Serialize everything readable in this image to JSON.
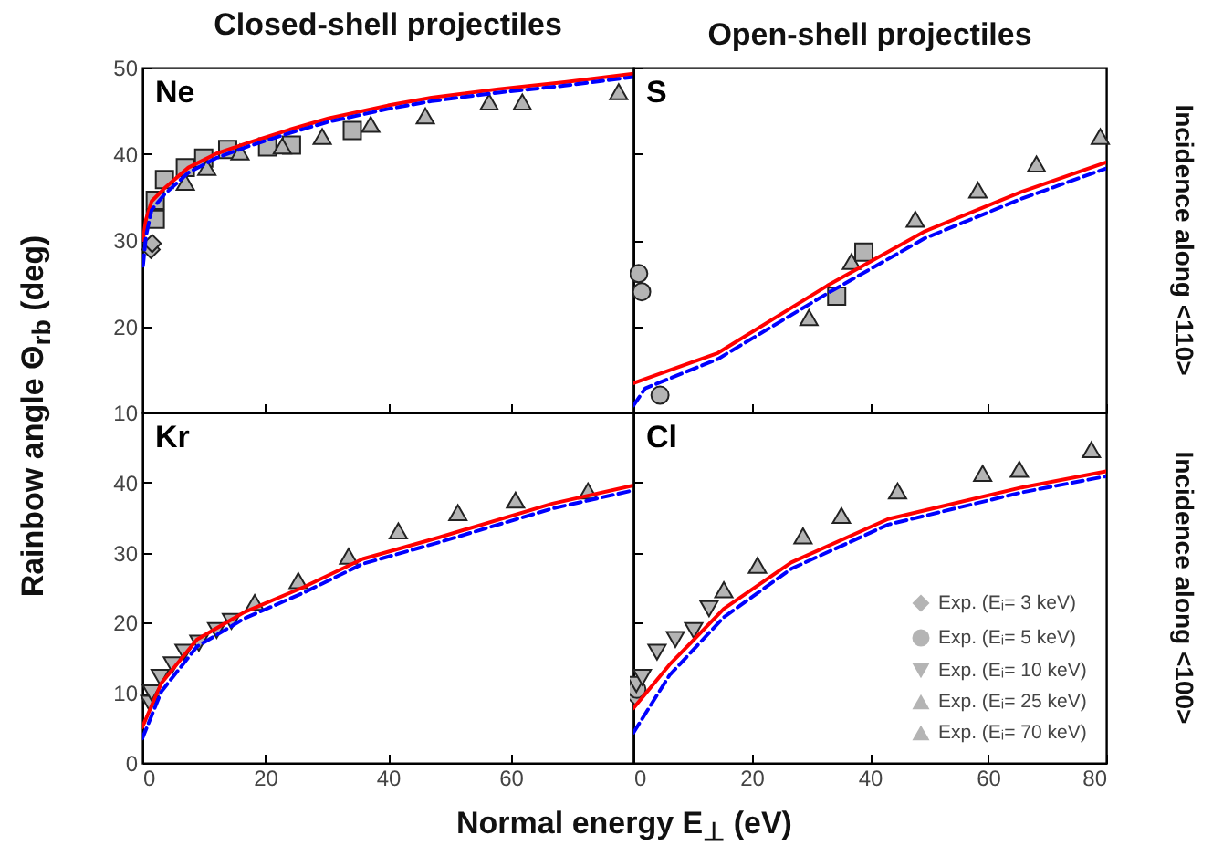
{
  "chart_data": [
    {
      "type": "scatter",
      "title": "Closed-shell projectiles",
      "ylabel": "Rainbow angle Θ$_{rb}$ (deg)",
      "annotations": [
        "Ne"
      ],
      "xlim": [
        0,
        80
      ],
      "xticks": [
        0,
        20,
        40,
        60,
        80
      ],
      "ylim": [
        10,
        50
      ],
      "yticks": [
        10,
        20,
        30,
        40,
        50
      ],
      "tick_labels": "y",
      "series": [
        {
          "color": "#b4b4b4",
          "marker": "diamond",
          "x": [
            1.4,
            1.6
          ],
          "values": [
            28.9,
            29.6
          ]
        },
        {
          "color": "#b4b4b4",
          "marker": "square",
          "x": [
            2.1,
            2.1,
            3.6,
            7.0,
            10.0,
            13.9,
            20.4,
            24.3,
            34.2
          ],
          "values": [
            32.4,
            34.6,
            37.0,
            38.4,
            39.5,
            40.5,
            40.8,
            41.0,
            42.7
          ]
        },
        {
          "color": "#b4b4b4",
          "marker": "triangle-up",
          "x": [
            7.0,
            10.5,
            15.9,
            22.8,
            29.3,
            37.2,
            46.1,
            56.5,
            61.9,
            77.6
          ],
          "values": [
            36.7,
            38.4,
            40.2,
            40.9,
            42.0,
            43.4,
            44.4,
            46.0,
            46.0,
            47.2
          ]
        },
        {
          "type": "line",
          "color": "#ff0000",
          "line_style": "solid",
          "x": [
            0.1,
            0.6,
            1.5,
            3.6,
            7.5,
            12,
            17.4,
            24,
            30.3,
            40,
            47.1,
            58,
            68.8,
            80
          ],
          "values": [
            30,
            32.4,
            34.5,
            36,
            38.4,
            40,
            41.3,
            42.8,
            44.1,
            45.6,
            46.5,
            47.5,
            48.3,
            49.3
          ]
        },
        {
          "type": "line",
          "color": "#0000ff",
          "line_style": "dashed",
          "x": [
            0.1,
            0.6,
            1.5,
            3.6,
            7.5,
            12,
            17.4,
            24,
            30.3,
            40,
            47.1,
            58,
            68.8,
            80
          ],
          "values": [
            27,
            30.5,
            33.5,
            35.3,
            37.8,
            39.5,
            40.9,
            42.4,
            43.7,
            45.2,
            46.1,
            47.1,
            47.9,
            48.9
          ]
        }
      ]
    },
    {
      "type": "scatter",
      "title": "Open-shell projectiles",
      "y2label": "Incidence along <110>",
      "annotations": [
        "S"
      ],
      "xlim": [
        0,
        80
      ],
      "xticks": [
        0,
        20,
        40,
        60,
        80
      ],
      "ylim": [
        10,
        50
      ],
      "yticks": [
        10,
        20,
        30,
        40,
        50
      ],
      "tick_labels": false,
      "series": [
        {
          "color": "#b4b4b4",
          "marker": "circle",
          "x": [
            0.9,
            1.4,
            4.5
          ],
          "values": [
            26.1,
            24.0,
            12.0
          ]
        },
        {
          "color": "#b4b4b4",
          "marker": "triangle-up",
          "x": [
            29.7,
            36.9,
            47.7,
            58.3,
            68.2,
            79
          ],
          "values": [
            21.0,
            27.5,
            32.4,
            35.8,
            38.8,
            42.0
          ]
        },
        {
          "color": "#b4b4b4",
          "marker": "square",
          "x": [
            34.4,
            39.0
          ],
          "values": [
            23.5,
            28.6
          ]
        },
        {
          "type": "line",
          "color": "#ff0000",
          "line_style": "solid",
          "x": [
            0,
            14.3,
            32.8,
            49.3,
            65.7,
            80
          ],
          "values": [
            13.4,
            16.9,
            24.7,
            31.0,
            35.6,
            39.0
          ]
        },
        {
          "type": "line",
          "color": "#0000ff",
          "line_style": "dashed",
          "x": [
            0,
            2,
            14.3,
            32.8,
            49.3,
            65.7,
            80
          ],
          "values": [
            10.8,
            12.8,
            16.2,
            23.8,
            30.2,
            34.8,
            38.3
          ]
        }
      ]
    },
    {
      "type": "scatter",
      "xlabel": "Normal energy E$_{⊥}$ (eV)",
      "annotations": [
        "Kr"
      ],
      "xlim": [
        0,
        80
      ],
      "xticks": [
        0,
        20,
        40,
        60
      ],
      "ylim": [
        0,
        50
      ],
      "yticks": [
        0,
        10,
        20,
        30,
        40
      ],
      "series": [
        {
          "color": "#b4b4b4",
          "marker": "triangle-down",
          "x": [
            1.2,
            1.5,
            2.9,
            4.9,
            6.8,
            9.2,
            12.1,
            14.5
          ],
          "values": [
            8.5,
            10.0,
            12.2,
            14.0,
            15.8,
            17.1,
            18.9,
            20.2
          ]
        },
        {
          "color": "#b4b4b4",
          "marker": "triangle-up",
          "x": [
            18.3,
            25.4,
            33.6,
            41.7,
            51.4,
            60.8,
            72.6
          ],
          "values": [
            22.9,
            26.0,
            29.5,
            33.1,
            35.7,
            37.5,
            38.8
          ]
        },
        {
          "type": "line",
          "color": "#ff0000",
          "line_style": "solid",
          "x": [
            0,
            3.1,
            8.9,
            16.6,
            26.3,
            35.9,
            48.4,
            66.8,
            80
          ],
          "values": [
            5.1,
            11.4,
            17.6,
            21.5,
            25.1,
            29.1,
            32.2,
            37.0,
            39.6
          ]
        },
        {
          "type": "line",
          "color": "#0000ff",
          "line_style": "dashed",
          "x": [
            0,
            3.1,
            8.9,
            16.6,
            26.3,
            35.9,
            48.4,
            66.8,
            80
          ],
          "values": [
            3.5,
            10.2,
            16.6,
            20.6,
            24.3,
            28.4,
            31.5,
            36.3,
            38.9
          ]
        }
      ]
    },
    {
      "type": "scatter",
      "y2label": "Incidence along <100>",
      "annotations": [
        "Cl"
      ],
      "legend": "bottom right",
      "xlim": [
        0,
        80
      ],
      "xticks": [
        0,
        20,
        40,
        60,
        80
      ],
      "ylim": [
        0,
        50
      ],
      "yticks": [
        0,
        10,
        20,
        30,
        40
      ],
      "tick_labels": "x",
      "series": [
        {
          "name": "Exp. (Eᵢ= 3 keV)",
          "color": "#b4b4b4",
          "marker": "diamond",
          "x": [
            0.3
          ],
          "values": [
            9.5
          ]
        },
        {
          "name": "Exp. (Eᵢ= 5 keV)",
          "color": "#b4b4b4",
          "marker": "circle",
          "x": [
            0.6
          ],
          "values": [
            10.5
          ]
        },
        {
          "name": "Exp. (Eᵢ= 10 keV)",
          "color": "#b4b4b4",
          "marker": "triangle-down",
          "x": [
            0.5,
            1.5,
            4.0,
            7.1,
            10.2,
            12.8
          ],
          "values": [
            11.2,
            12.2,
            15.8,
            17.6,
            18.9,
            22.0
          ]
        },
        {
          "name": "Exp. (Eᵢ= 25 keV)",
          "color": "#b4b4b4",
          "marker": "triangle-up",
          "x": [
            15.3,
            21.0
          ],
          "values": [
            24.7,
            28.2
          ]
        },
        {
          "name": "Exp. (Eᵢ= 70 keV)",
          "color": "#b4b4b4",
          "marker": "triangle-up",
          "x": [
            28.7,
            35.2,
            44.7,
            59.1,
            65.3,
            77.5
          ],
          "values": [
            32.4,
            35.3,
            38.8,
            41.3,
            41.9,
            44.7
          ]
        },
        {
          "type": "line",
          "color": "#ff0000",
          "line_style": "solid",
          "x": [
            0,
            6.1,
            15.3,
            26.7,
            43.1,
            65.7,
            80
          ],
          "values": [
            7.8,
            14.0,
            22.0,
            28.6,
            34.8,
            39.3,
            41.6
          ]
        },
        {
          "type": "line",
          "color": "#0000ff",
          "line_style": "dashed",
          "x": [
            0,
            6.1,
            15.3,
            26.7,
            43.1,
            65.7,
            80
          ],
          "values": [
            4.3,
            12.5,
            20.8,
            27.7,
            34.0,
            38.6,
            40.9
          ]
        }
      ]
    }
  ]
}
